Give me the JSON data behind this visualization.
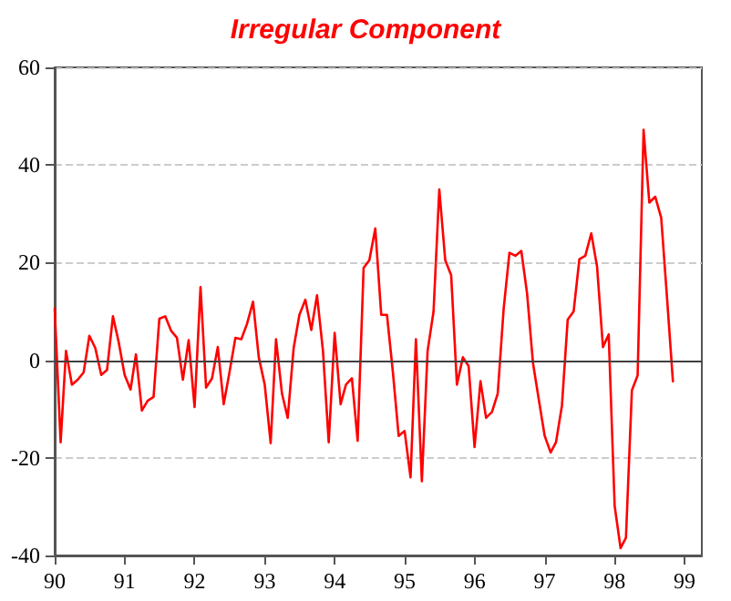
{
  "chart_data": {
    "type": "line",
    "title": "Irregular Component",
    "x": [
      "1990-01",
      "1990-02",
      "1990-03",
      "1990-04",
      "1990-05",
      "1990-06",
      "1990-07",
      "1990-08",
      "1990-09",
      "1990-10",
      "1990-11",
      "1990-12",
      "1991-01",
      "1991-02",
      "1991-03",
      "1991-04",
      "1991-05",
      "1991-06",
      "1991-07",
      "1991-08",
      "1991-09",
      "1991-10",
      "1991-11",
      "1991-12",
      "1992-01",
      "1992-02",
      "1992-03",
      "1992-04",
      "1992-05",
      "1992-06",
      "1992-07",
      "1992-08",
      "1992-09",
      "1992-10",
      "1992-11",
      "1992-12",
      "1993-01",
      "1993-02",
      "1993-03",
      "1993-04",
      "1993-05",
      "1993-06",
      "1993-07",
      "1993-08",
      "1993-09",
      "1993-10",
      "1993-11",
      "1993-12",
      "1994-01",
      "1994-02",
      "1994-03",
      "1994-04",
      "1994-05",
      "1994-06",
      "1994-07",
      "1994-08",
      "1994-09",
      "1994-10",
      "1994-11",
      "1994-12",
      "1995-01",
      "1995-02",
      "1995-03",
      "1995-04",
      "1995-05",
      "1995-06",
      "1995-07",
      "1995-08",
      "1995-09",
      "1995-10",
      "1995-11",
      "1995-12",
      "1996-01",
      "1996-02",
      "1996-03",
      "1996-04",
      "1996-05",
      "1996-06",
      "1996-07",
      "1996-08",
      "1996-09",
      "1996-10",
      "1996-11",
      "1996-12",
      "1997-01",
      "1997-02",
      "1997-03",
      "1997-04",
      "1997-05",
      "1997-06",
      "1997-07",
      "1997-08",
      "1997-09",
      "1997-10",
      "1997-11",
      "1997-12",
      "1998-01",
      "1998-02",
      "1998-03",
      "1998-04",
      "1998-05",
      "1998-06",
      "1998-07",
      "1998-08",
      "1998-09",
      "1998-10",
      "1998-11"
    ],
    "series": [
      {
        "color": "#ff0000",
        "values": [
          10.6,
          -16.8,
          1.9,
          -5,
          -4,
          -2.5,
          5,
          2.5,
          -3,
          -2,
          9,
          3.7,
          -3,
          -6,
          1.2,
          -10.3,
          -8.3,
          -7.5,
          8.5,
          9,
          6,
          4.6,
          -4,
          4.1,
          -9.6,
          15,
          -5.6,
          -3.7,
          2.7,
          -9,
          -2.5,
          4.6,
          4.3,
          7.5,
          12,
          0.6,
          -5,
          -17,
          4.3,
          -6.8,
          -11.8,
          2.5,
          9.3,
          12.4,
          6.2,
          13.3,
          1.9,
          -16.8,
          5.6,
          -9,
          -5,
          -3.7,
          -16.5,
          18.9,
          20.5,
          27,
          9.3,
          9.3,
          -2.5,
          -15.5,
          -14.5,
          -24,
          4.3,
          -24.8,
          1.9,
          10,
          35,
          20.5,
          17.4,
          -5,
          0.6,
          -1.2,
          -17.8,
          -4.3,
          -11.8,
          -10.6,
          -6.8,
          10.6,
          22,
          21.4,
          22.4,
          13.7,
          -0.6,
          -8,
          -15.5,
          -18.9,
          -16.8,
          -9.3,
          8.3,
          10,
          20.7,
          21.4,
          26,
          19.3,
          2.7,
          5.3,
          -29.8,
          -38.5,
          -36.4,
          -6.2,
          -3.1,
          47.2,
          32.3,
          33.5,
          29.2,
          13,
          -4.3
        ]
      }
    ],
    "xlim": [
      "1990-01",
      "1999-04"
    ],
    "xticks": [
      {
        "value": "1990-01",
        "label": "90"
      },
      {
        "value": "1991-01",
        "label": "91"
      },
      {
        "value": "1992-01",
        "label": "92"
      },
      {
        "value": "1993-01",
        "label": "93"
      },
      {
        "value": "1994-01",
        "label": "94"
      },
      {
        "value": "1995-01",
        "label": "95"
      },
      {
        "value": "1996-01",
        "label": "96"
      },
      {
        "value": "1997-01",
        "label": "97"
      },
      {
        "value": "1998-01",
        "label": "98"
      },
      {
        "value": "1999-01",
        "label": "99"
      }
    ],
    "ylim": [
      -40,
      60
    ],
    "yticks": [
      -40,
      -20,
      0,
      20,
      40,
      60
    ],
    "ref_lines": [
      {
        "axis": "y",
        "value": 0,
        "color": "#404040"
      }
    ],
    "grid": "y",
    "marker": "none",
    "line_style": "solid"
  }
}
